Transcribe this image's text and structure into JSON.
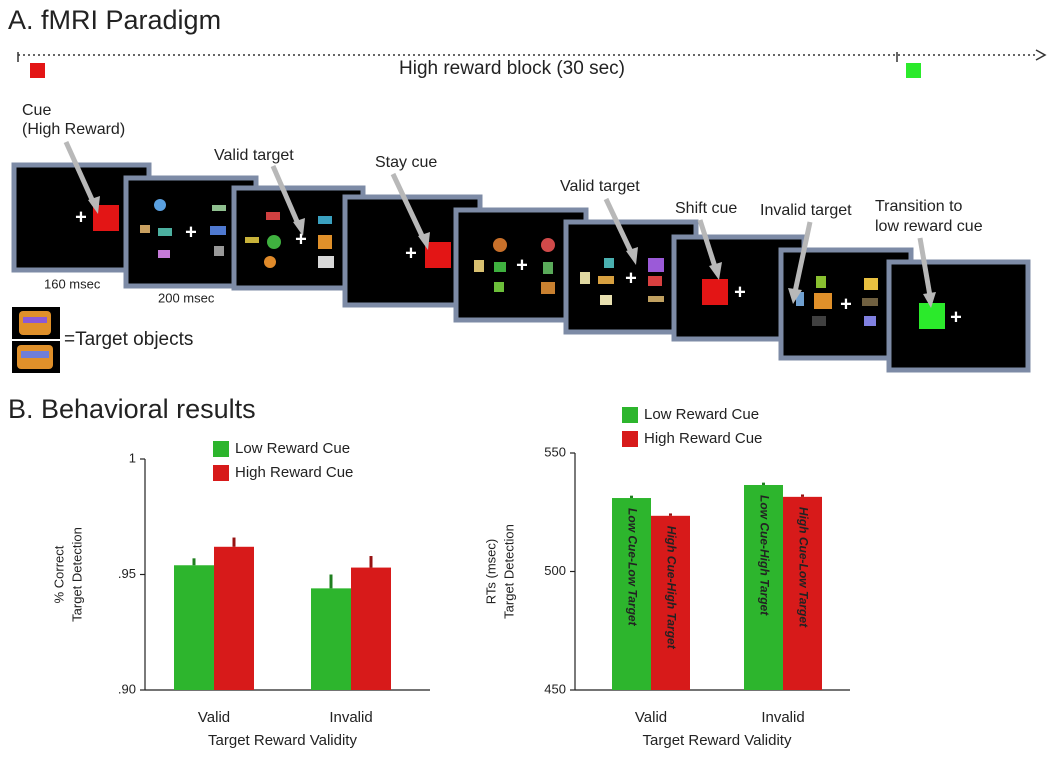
{
  "paradigm": {
    "title": "A. fMRI Paradigm",
    "block_label": "High reward block (30 sec)",
    "cue_label": [
      "Cue",
      "(High Reward)"
    ],
    "valid_target_1": "Valid target",
    "stay_cue": "Stay cue",
    "valid_target_2": "Valid target",
    "shift_cue": "Shift cue",
    "invalid_target": "Invalid target",
    "transition_label": [
      "Transition to",
      "low reward cue"
    ],
    "cue_duration": "160 msec",
    "target_duration": "200 msec",
    "target_objects": "=Target objects"
  },
  "section_b_title": "B. Behavioral results",
  "chart_data": [
    {
      "type": "bar",
      "ylabel": [
        "% Correct",
        "Target Detection"
      ],
      "xlabel": "Target Reward Validity",
      "categories": [
        "Valid",
        "Invalid"
      ],
      "series": [
        {
          "name": "Low Reward Cue",
          "color": "#2db52d",
          "values": [
            0.954,
            0.944
          ],
          "errors": [
            0.003,
            0.006
          ]
        },
        {
          "name": "High Reward Cue",
          "color": "#d71a1a",
          "values": [
            0.962,
            0.953
          ],
          "errors": [
            0.004,
            0.005
          ]
        }
      ],
      "ylim": [
        0.9,
        1
      ],
      "yticks": [
        {
          "value": 0.9,
          "label": ".90"
        },
        {
          "value": 0.95,
          "label": ".95"
        },
        1
      ],
      "legend": "inside-top"
    },
    {
      "type": "bar",
      "ylabel": [
        "RTs (msec)",
        "Target Detection"
      ],
      "xlabel": "Target Reward Validity",
      "categories": [
        "Valid",
        "Invalid"
      ],
      "series": [
        {
          "name": "Low Reward Cue",
          "color": "#2db52d",
          "values": [
            531,
            536.5
          ],
          "errors": [
            1,
            1
          ],
          "bar_labels": [
            "Low Cue-Low Target",
            "Low Cue-High Target"
          ]
        },
        {
          "name": "High Reward Cue",
          "color": "#d71a1a",
          "values": [
            523.5,
            531.5
          ],
          "errors": [
            1,
            1
          ],
          "bar_labels": [
            "High Cue-High Target",
            "High Cue-Low Target"
          ]
        }
      ],
      "ylim": [
        450,
        550
      ],
      "yticks": [
        450,
        500,
        550
      ],
      "legend": "above"
    }
  ]
}
